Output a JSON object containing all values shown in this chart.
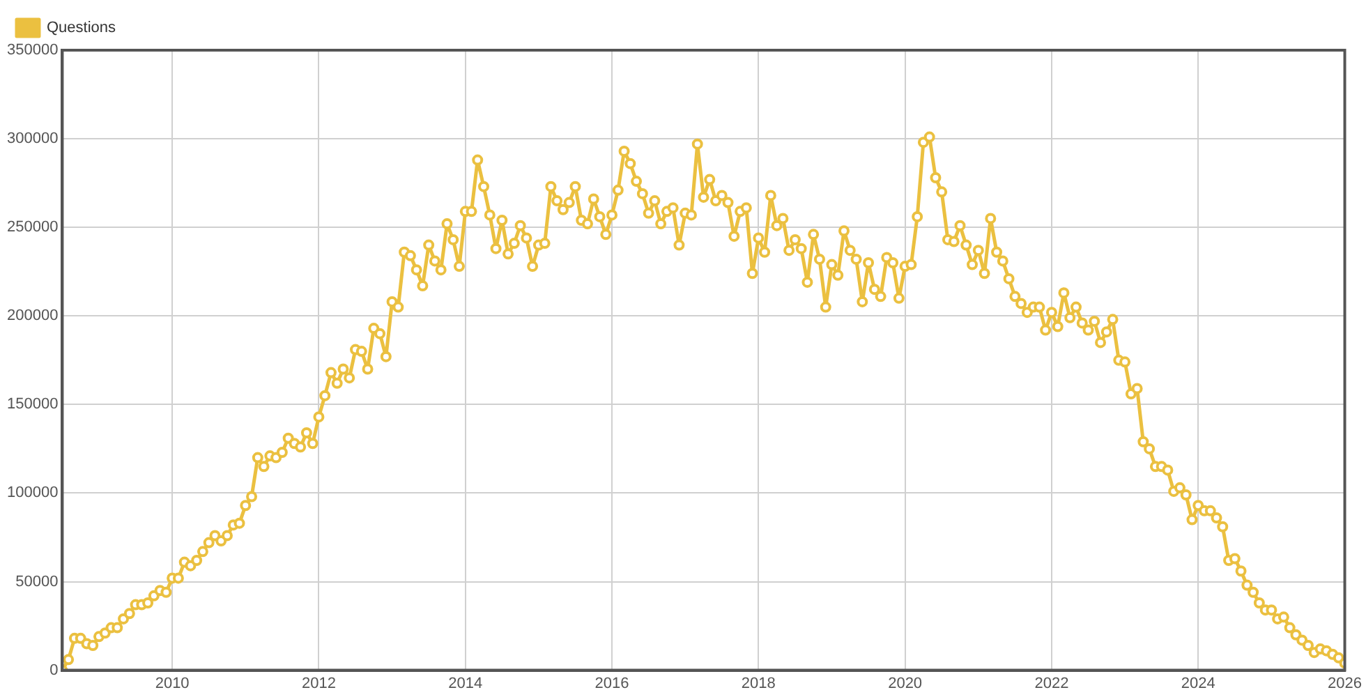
{
  "chart_data": {
    "type": "line",
    "x": [
      "2008-07",
      "2008-08",
      "2008-09",
      "2008-10",
      "2008-11",
      "2008-12",
      "2009-01",
      "2009-02",
      "2009-03",
      "2009-04",
      "2009-05",
      "2009-06",
      "2009-07",
      "2009-08",
      "2009-09",
      "2009-10",
      "2009-11",
      "2009-12",
      "2010-01",
      "2010-02",
      "2010-03",
      "2010-04",
      "2010-05",
      "2010-06",
      "2010-07",
      "2010-08",
      "2010-09",
      "2010-10",
      "2010-11",
      "2010-12",
      "2011-01",
      "2011-02",
      "2011-03",
      "2011-04",
      "2011-05",
      "2011-06",
      "2011-07",
      "2011-08",
      "2011-09",
      "2011-10",
      "2011-11",
      "2011-12",
      "2012-01",
      "2012-02",
      "2012-03",
      "2012-04",
      "2012-05",
      "2012-06",
      "2012-07",
      "2012-08",
      "2012-09",
      "2012-10",
      "2012-11",
      "2012-12",
      "2013-01",
      "2013-02",
      "2013-03",
      "2013-04",
      "2013-05",
      "2013-06",
      "2013-07",
      "2013-08",
      "2013-09",
      "2013-10",
      "2013-11",
      "2013-12",
      "2014-01",
      "2014-02",
      "2014-03",
      "2014-04",
      "2014-05",
      "2014-06",
      "2014-07",
      "2014-08",
      "2014-09",
      "2014-10",
      "2014-11",
      "2014-12",
      "2015-01",
      "2015-02",
      "2015-03",
      "2015-04",
      "2015-05",
      "2015-06",
      "2015-07",
      "2015-08",
      "2015-09",
      "2015-10",
      "2015-11",
      "2015-12",
      "2016-01",
      "2016-02",
      "2016-03",
      "2016-04",
      "2016-05",
      "2016-06",
      "2016-07",
      "2016-08",
      "2016-09",
      "2016-10",
      "2016-11",
      "2016-12",
      "2017-01",
      "2017-02",
      "2017-03",
      "2017-04",
      "2017-05",
      "2017-06",
      "2017-07",
      "2017-08",
      "2017-09",
      "2017-10",
      "2017-11",
      "2017-12",
      "2018-01",
      "2018-02",
      "2018-03",
      "2018-04",
      "2018-05",
      "2018-06",
      "2018-07",
      "2018-08",
      "2018-09",
      "2018-10",
      "2018-11",
      "2018-12",
      "2019-01",
      "2019-02",
      "2019-03",
      "2019-04",
      "2019-05",
      "2019-06",
      "2019-07",
      "2019-08",
      "2019-09",
      "2019-10",
      "2019-11",
      "2019-12",
      "2020-01",
      "2020-02",
      "2020-03",
      "2020-04",
      "2020-05",
      "2020-06",
      "2020-07",
      "2020-08",
      "2020-09",
      "2020-10",
      "2020-11",
      "2020-12",
      "2021-01",
      "2021-02",
      "2021-03",
      "2021-04",
      "2021-05",
      "2021-06",
      "2021-07",
      "2021-08",
      "2021-09",
      "2021-10",
      "2021-11",
      "2021-12",
      "2022-01",
      "2022-02",
      "2022-03",
      "2022-04",
      "2022-05",
      "2022-06",
      "2022-07",
      "2022-08",
      "2022-09",
      "2022-10",
      "2022-11",
      "2022-12",
      "2023-01",
      "2023-02",
      "2023-03",
      "2023-04",
      "2023-05",
      "2023-06",
      "2023-07",
      "2023-08",
      "2023-09",
      "2023-10",
      "2023-11",
      "2023-12",
      "2024-01",
      "2024-02",
      "2024-03",
      "2024-04",
      "2024-05",
      "2024-06",
      "2024-07",
      "2024-08",
      "2024-09",
      "2024-10",
      "2024-11",
      "2024-12",
      "2025-01",
      "2025-02",
      "2025-03",
      "2025-04",
      "2025-05",
      "2025-06",
      "2025-07",
      "2025-08",
      "2025-09",
      "2025-10",
      "2025-11",
      "2025-12",
      "2026-01"
    ],
    "xlim": [
      "2008-07",
      "2026-01"
    ],
    "xticks": [
      "2010",
      "2012",
      "2014",
      "2016",
      "2018",
      "2020",
      "2022",
      "2024",
      "2026"
    ],
    "ylim": [
      0,
      350000
    ],
    "yticks": [
      0,
      50000,
      100000,
      150000,
      200000,
      250000,
      300000,
      350000
    ],
    "grid": true,
    "legend": "top left",
    "marker": "circle",
    "line_style": "solid",
    "series": [
      {
        "name": "Questions",
        "color": "#ebc040",
        "values": [
          0,
          6000,
          18000,
          18000,
          15000,
          14000,
          19000,
          21000,
          24000,
          24000,
          29000,
          32000,
          37000,
          37000,
          38000,
          42000,
          45000,
          44000,
          52000,
          52000,
          61000,
          59000,
          62000,
          67000,
          72000,
          76000,
          73000,
          76000,
          82000,
          83000,
          93000,
          98000,
          120000,
          115000,
          121000,
          120000,
          123000,
          131000,
          128000,
          126000,
          134000,
          128000,
          143000,
          155000,
          168000,
          162000,
          170000,
          165000,
          181000,
          180000,
          170000,
          193000,
          190000,
          177000,
          208000,
          205000,
          236000,
          234000,
          226000,
          217000,
          240000,
          231000,
          226000,
          252000,
          243000,
          228000,
          259000,
          259000,
          288000,
          273000,
          257000,
          238000,
          254000,
          235000,
          241000,
          251000,
          244000,
          228000,
          240000,
          241000,
          273000,
          265000,
          260000,
          264000,
          273000,
          254000,
          252000,
          266000,
          256000,
          246000,
          257000,
          271000,
          293000,
          286000,
          276000,
          269000,
          258000,
          265000,
          252000,
          259000,
          261000,
          240000,
          258000,
          257000,
          297000,
          267000,
          277000,
          265000,
          268000,
          264000,
          245000,
          259000,
          261000,
          224000,
          244000,
          236000,
          268000,
          251000,
          255000,
          237000,
          243000,
          238000,
          219000,
          246000,
          232000,
          205000,
          229000,
          223000,
          248000,
          237000,
          232000,
          208000,
          230000,
          215000,
          211000,
          233000,
          230000,
          210000,
          228000,
          229000,
          256000,
          298000,
          301000,
          278000,
          270000,
          243000,
          242000,
          251000,
          240000,
          229000,
          237000,
          224000,
          255000,
          236000,
          231000,
          221000,
          211000,
          207000,
          202000,
          205000,
          205000,
          192000,
          202000,
          194000,
          213000,
          199000,
          205000,
          196000,
          192000,
          197000,
          185000,
          191000,
          198000,
          175000,
          174000,
          156000,
          159000,
          129000,
          125000,
          115000,
          115000,
          113000,
          101000,
          103000,
          99000,
          85000,
          93000,
          90000,
          90000,
          86000,
          81000,
          62000,
          63000,
          56000,
          48000,
          44000,
          38000,
          34000,
          34000,
          29000,
          30000,
          24000,
          20000,
          17000,
          14000,
          10000,
          12000,
          11000,
          9000,
          7000,
          4000
        ]
      }
    ]
  }
}
